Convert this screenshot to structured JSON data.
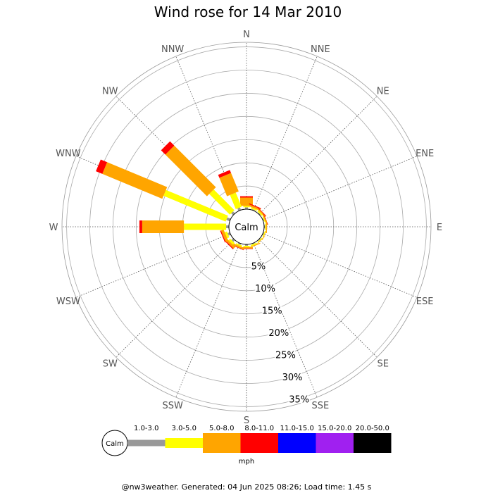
{
  "chart_data": {
    "type": "windrose",
    "title": "Wind rose for 14 Mar 2010",
    "directions": [
      "N",
      "NNE",
      "NE",
      "ENE",
      "E",
      "ESE",
      "SE",
      "SSE",
      "S",
      "SSW",
      "SW",
      "WSW",
      "W",
      "WNW",
      "NW",
      "NNW"
    ],
    "rings": [
      "5%",
      "10%",
      "15%",
      "20%",
      "25%",
      "30%",
      "35%"
    ],
    "calm_label": "Calm",
    "unit": "mph",
    "bins": [
      {
        "label": "1.0-3.0",
        "color": "#999999"
      },
      {
        "label": "3.0-5.0",
        "color": "#ffff00"
      },
      {
        "label": "5.0-8.0",
        "color": "#ffa500"
      },
      {
        "label": "8.0-11.0",
        "color": "#ff0000"
      },
      {
        "label": "11.0-15.0",
        "color": "#0000ff"
      },
      {
        "label": "15.0-20.0",
        "color": "#a020f0"
      },
      {
        "label": "20.0-50.0",
        "color": "#000000"
      }
    ],
    "series_by_direction": {
      "N": [
        0.4,
        0.3,
        1.8,
        0.3,
        0,
        0,
        0
      ],
      "NNE": [
        0.2,
        0.3,
        0.4,
        0.2,
        0,
        0,
        0
      ],
      "NE": [
        0.2,
        0.3,
        0.3,
        0.1,
        0,
        0,
        0
      ],
      "ENE": [
        0.2,
        0.2,
        0.2,
        0.1,
        0,
        0,
        0
      ],
      "E": [
        0.2,
        0.2,
        0.2,
        0,
        0,
        0,
        0
      ],
      "ESE": [
        0.2,
        0.2,
        0.1,
        0,
        0,
        0,
        0
      ],
      "SE": [
        0.2,
        0.2,
        0.1,
        0,
        0,
        0,
        0
      ],
      "SSE": [
        0.2,
        0.3,
        0.2,
        0,
        0,
        0,
        0
      ],
      "S": [
        0.3,
        0.3,
        0.3,
        0.1,
        0,
        0,
        0
      ],
      "SSW": [
        0.3,
        0.3,
        0.4,
        0.1,
        0,
        0,
        0
      ],
      "SW": [
        0.5,
        0.5,
        0.5,
        0.2,
        0,
        0,
        0
      ],
      "WSW": [
        0.5,
        0.5,
        0.6,
        0.2,
        0,
        0,
        0
      ],
      "W": [
        0.6,
        9.1,
        9.0,
        0.6,
        0,
        0,
        0
      ],
      "WNW": [
        0.8,
        14.5,
        14.0,
        1.5,
        0,
        0,
        0
      ],
      "NW": [
        0.6,
        6.3,
        12.7,
        1.3,
        0,
        0,
        0
      ],
      "NNW": [
        0.6,
        3.3,
        4.3,
        0.7,
        0,
        0,
        0
      ]
    },
    "rmax": 36
  },
  "footer": "@nw3weather. Generated: 04 Jun 2025 08:26; Load time: 1.45 s"
}
